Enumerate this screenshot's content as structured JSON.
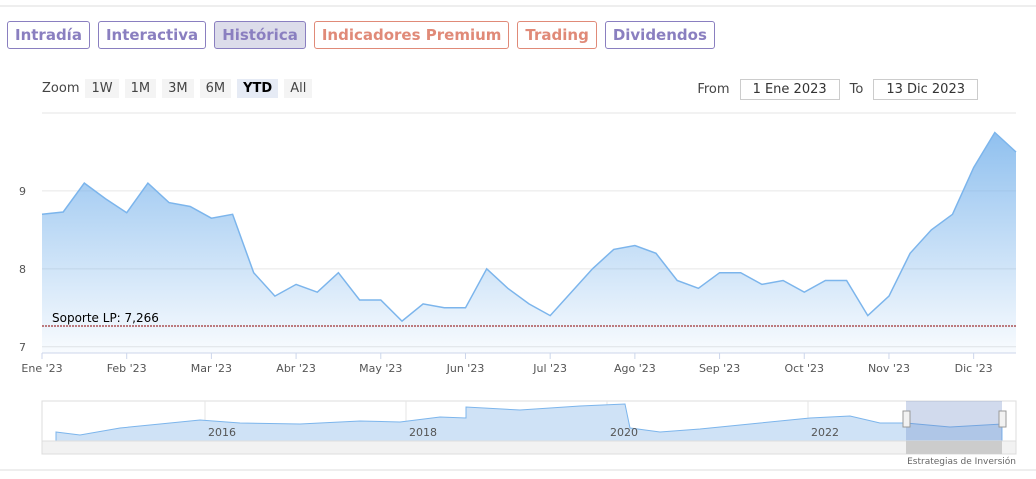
{
  "tabs": [
    {
      "label": "Intradía",
      "color": "#8a7fc0"
    },
    {
      "label": "Interactiva",
      "color": "#8a7fc0"
    },
    {
      "label": "Histórica",
      "color": "#8a7fc0"
    },
    {
      "label": "Indicadores Premium",
      "color": "#e08a78"
    },
    {
      "label": "Trading",
      "color": "#e08a78"
    },
    {
      "label": "Dividendos",
      "color": "#8a7fc0"
    }
  ],
  "active_tab": 2,
  "range_selector": {
    "zoom_label": "Zoom",
    "buttons": [
      "1W",
      "1M",
      "3M",
      "6M",
      "YTD",
      "All"
    ],
    "active_button": 4,
    "from_label": "From",
    "from": "1 Ene 2023",
    "to_label": "To",
    "to": "13 Dic 2023"
  },
  "chart_data": {
    "type": "area",
    "color": "#7cb5ec",
    "categories": [
      "Ene '23",
      null,
      null,
      null,
      "Feb '23",
      null,
      null,
      null,
      "Mar '23",
      null,
      null,
      null,
      "Abr '23",
      null,
      null,
      null,
      "May '23",
      null,
      null,
      null,
      "Jun '23",
      null,
      null,
      null,
      "Jul '23",
      null,
      null,
      null,
      "Ago '23",
      null,
      null,
      null,
      "Sep '23",
      null,
      null,
      null,
      "Oct '23",
      null,
      null,
      null,
      "Nov '23",
      null,
      null,
      null,
      "Dic '23",
      null,
      null
    ],
    "values": [
      8.7,
      8.73,
      9.1,
      8.9,
      8.72,
      9.1,
      8.85,
      8.8,
      8.65,
      8.7,
      7.95,
      7.65,
      7.8,
      7.7,
      7.95,
      7.6,
      7.6,
      7.33,
      7.55,
      7.5,
      7.5,
      8.0,
      7.75,
      7.55,
      7.4,
      7.7,
      8.0,
      8.25,
      8.3,
      8.2,
      7.85,
      7.75,
      7.95,
      7.95,
      7.8,
      7.85,
      7.7,
      7.85,
      7.85,
      7.4,
      7.65,
      8.2,
      8.5,
      8.7,
      9.3,
      9.75,
      9.5
    ],
    "ylim": [
      6.92,
      10
    ],
    "yticks": [
      7,
      8,
      9
    ],
    "grid": true,
    "support": {
      "value": 7.266,
      "label": "Soporte LP: 7,266",
      "color": "#8b0000"
    },
    "navigator_labels": [
      "2016",
      "2018",
      "2020",
      "2022"
    ],
    "credits": "Estrategias de Inversión"
  }
}
